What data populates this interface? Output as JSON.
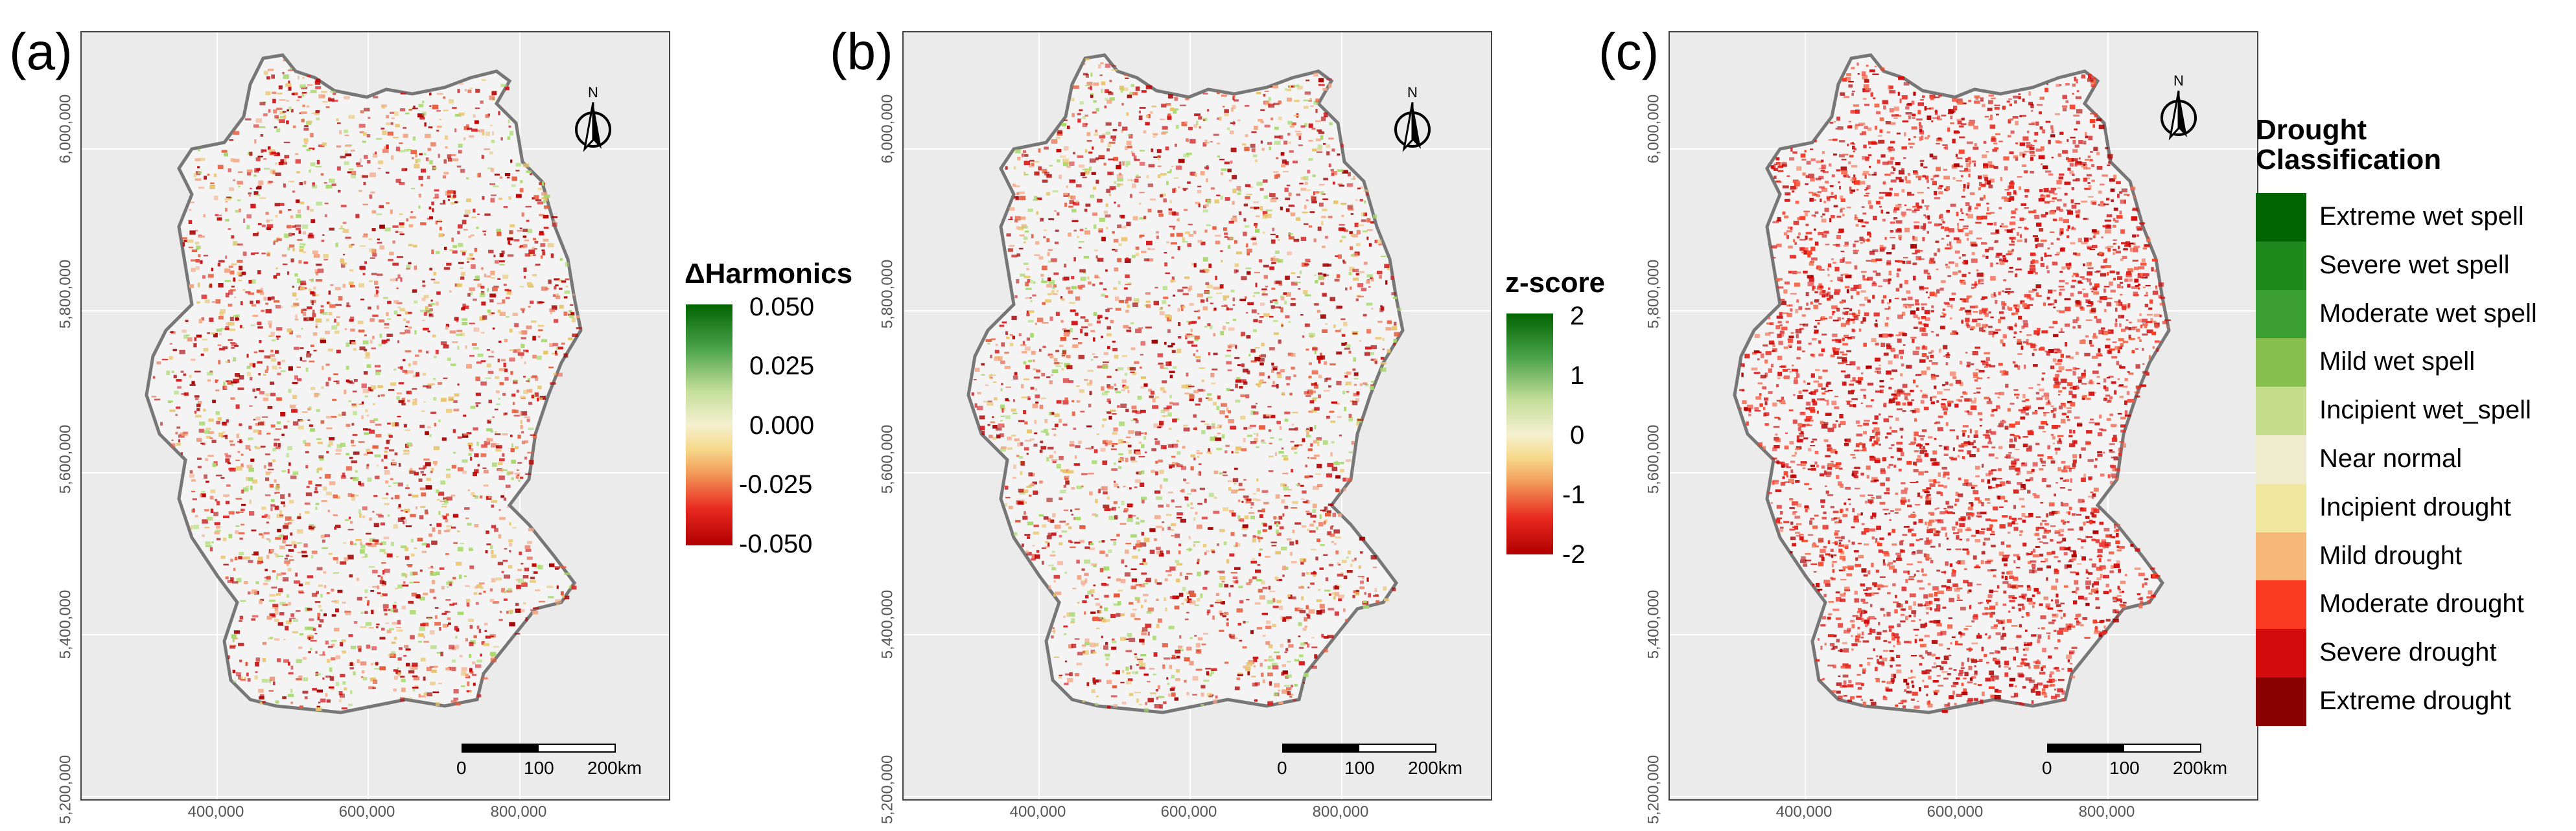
{
  "panels": [
    {
      "label": "(a)",
      "legend": {
        "title": "ΔHarmonics",
        "ticks": [
          "0.050",
          "0.025",
          "0.000",
          "-0.025",
          "-0.050"
        ]
      }
    },
    {
      "label": "(b)",
      "legend": {
        "title": "z-score",
        "ticks": [
          "2",
          "1",
          "0",
          "-1",
          "-2"
        ]
      }
    },
    {
      "label": "(c)",
      "legend": {
        "title_line1": "Drought",
        "title_line2": "Classification"
      }
    }
  ],
  "axes": {
    "y_ticks": [
      "6,000,000",
      "5,800,000",
      "5,600,000",
      "5,400,000",
      "5,200,000"
    ],
    "x_ticks": [
      "400,000",
      "600,000",
      "800,000"
    ]
  },
  "scalebar": {
    "labels": [
      "0",
      "100",
      "200km"
    ]
  },
  "north_label": "N",
  "classification": [
    {
      "label": "Extreme wet spell",
      "color": "#006400"
    },
    {
      "label": "Severe wet spell",
      "color": "#1e8a1e"
    },
    {
      "label": "Moderate wet spell",
      "color": "#3a9e32"
    },
    {
      "label": "Mild wet spell",
      "color": "#86bf4e"
    },
    {
      "label": "Incipient wet_spell",
      "color": "#c6dd8e"
    },
    {
      "label": "Near normal",
      "color": "#eeebcf"
    },
    {
      "label": "Incipient drought",
      "color": "#f2e79e"
    },
    {
      "label": "Mild drought",
      "color": "#f5b878"
    },
    {
      "label": "Moderate drought",
      "color": "#fb3a22"
    },
    {
      "label": "Severe drought",
      "color": "#d40b0b"
    },
    {
      "label": "Extreme drought",
      "color": "#8b0000"
    }
  ],
  "colors": {
    "map_background": "#ebebeb",
    "land": "#f4f4f4",
    "border": "#777777",
    "drought_dark": "#a50000",
    "drought_mid": "#d7191c",
    "drought_light": "#f4a582",
    "wet": "#a6d96a"
  }
}
